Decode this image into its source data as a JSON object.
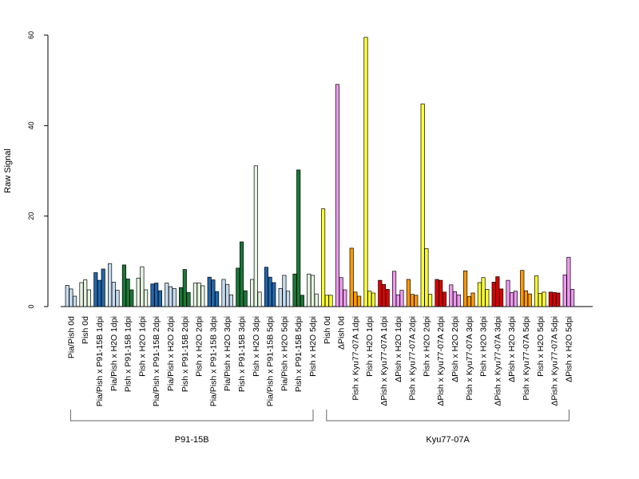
{
  "chart_data": {
    "type": "bar",
    "ylabel": "Raw Signal",
    "xlabel": "",
    "ylim": [
      0,
      60
    ],
    "yticks": [
      0,
      20,
      40,
      60
    ],
    "grid": false,
    "categories": [
      "Pia/Pish 0d",
      "Pish 0d",
      "Pia/Pish x P91-15B 1dpi",
      "Pia/Pish x H2O 1dpi",
      "Pish x P91-15B 1dpi",
      "Pish x H2O 1dpi",
      "Pia/Pish x P91-15B 2dpi",
      "Pia/Pish x H2O 2dpi",
      "Pish x P91-15B 2dpi",
      "Pish x H2O 2dpi",
      "Pia/Pish x P91-15B 3dpi",
      "Pia/Pish x H2O 3dpi",
      "Pish x P91-15B 3dpi",
      "Pish x H2O 3dpi",
      "Pia/Pish x P91-15B 5dpi",
      "Pia/Pish x H2O 5dpi",
      "Pish x P91-15B 5dpi",
      "Pish x H2O 5dpi",
      "Pish 0d",
      "ΔPish 0d",
      "Pish x Kyu77-07A 1dpi",
      "Pish x H2O 1dpi",
      "ΔPish x Kyu77-07A 1dpi",
      "ΔPish x H2O 1dpi",
      "Pish x Kyu77-07A 2dpi",
      "Pish x H2O 2dpi",
      "ΔPish x Kyu77-07A 2dpi",
      "ΔPish x H2O 2dpi",
      "Pish x Kyu77-07A 3dpi",
      "Pish x H2O 3dpi",
      "ΔPish x Kyu77-07A 3dpi",
      "ΔPish x H2O 3dpi",
      "Pish x Kyu77-07A 5dpi",
      "Pish x H2O 5dpi",
      "ΔPish x Kyu77-07A 5dpi",
      "ΔPish x H2O 5dpi"
    ],
    "colors": [
      "#c6dbef",
      "#e5f5e0",
      "#2166ac",
      "#c6dbef",
      "#1b7837",
      "#e5f5e0",
      "#2166ac",
      "#c6dbef",
      "#1b7837",
      "#e5f5e0",
      "#2166ac",
      "#c6dbef",
      "#1b7837",
      "#e5f5e0",
      "#2166ac",
      "#c6dbef",
      "#1b7837",
      "#e5f5e0",
      "#ffff33",
      "#ee99ee",
      "#ff9900",
      "#ffff33",
      "#dd0000",
      "#ee99ee",
      "#ff9900",
      "#ffff33",
      "#dd0000",
      "#ee99ee",
      "#ff9900",
      "#ffff33",
      "#dd0000",
      "#ee99ee",
      "#ff9900",
      "#ffff33",
      "#dd0000",
      "#ee99ee"
    ],
    "values": [
      [
        4.7,
        3.9,
        2.3
      ],
      [
        5.3,
        5.9,
        3.7
      ],
      [
        7.5,
        5.8,
        8.3
      ],
      [
        9.5,
        5.4,
        3.6
      ],
      [
        9.2,
        6.1,
        3.7
      ],
      [
        6.3,
        8.8,
        3.7
      ],
      [
        5.0,
        5.2,
        3.5
      ],
      [
        5.2,
        4.4,
        4.0
      ],
      [
        4.2,
        8.2,
        3.1
      ],
      [
        5.2,
        5.2,
        4.6
      ],
      [
        6.5,
        5.9,
        3.3
      ],
      [
        6.0,
        4.9,
        2.6
      ],
      [
        8.5,
        14.3,
        3.5
      ],
      [
        6.0,
        31.1,
        3.2
      ],
      [
        8.7,
        6.5,
        5.3
      ],
      [
        4.0,
        6.9,
        3.4
      ],
      [
        7.2,
        30.2,
        2.5
      ],
      [
        7.2,
        6.9,
        2.8
      ],
      [
        21.6,
        2.5,
        2.5
      ],
      [
        49.1,
        6.4,
        3.7
      ],
      [
        12.9,
        3.2,
        2.3
      ],
      [
        59.5,
        3.4,
        3.0
      ],
      [
        5.8,
        4.9,
        3.8
      ],
      [
        7.8,
        2.6,
        3.6
      ],
      [
        6.0,
        2.7,
        2.5
      ],
      [
        44.8,
        12.8,
        2.7
      ],
      [
        6.0,
        5.8,
        3.2
      ],
      [
        4.8,
        3.3,
        2.6
      ],
      [
        7.9,
        2.2,
        3.0
      ],
      [
        5.3,
        6.4,
        3.8
      ],
      [
        5.4,
        6.6,
        3.9
      ],
      [
        5.8,
        3.1,
        3.4
      ],
      [
        8.0,
        3.5,
        2.8
      ],
      [
        6.8,
        2.9,
        3.2
      ],
      [
        3.2,
        3.1,
        3.0
      ],
      [
        7.0,
        10.9,
        3.8
      ]
    ],
    "groups": [
      {
        "label": "P91-15B",
        "start": 0,
        "end": 17
      },
      {
        "label": "Kyu77-07A",
        "start": 18,
        "end": 35
      }
    ]
  }
}
